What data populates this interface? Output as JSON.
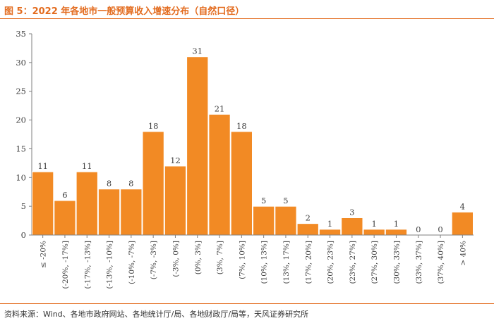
{
  "title": "图 5：2022 年各地市一般预算收入增速分布（自然口径）",
  "source": "资料来源：Wind、各地市政府网站、各地统计厅/局、各地财政厅/局等，天风证券研究所",
  "colors": {
    "bar": "#f28a24",
    "accent": "#e36c1f",
    "axis": "#7f7f7f"
  },
  "chart_data": {
    "type": "bar",
    "categories": [
      "≤ -20%",
      "(-20%, -17%]",
      "(-17%, -13%]",
      "(-13%, -10%]",
      "(-10%, -7%]",
      "(-7%, -3%]",
      "(-3%, 0%]",
      "(0%, 3%]",
      "(3%, 7%]",
      "(7%, 10%]",
      "(10%, 13%]",
      "(13%, 17%]",
      "(17%, 20%]",
      "(20%, 23%]",
      "(23%, 27%]",
      "(27%, 30%]",
      "(30%, 33%]",
      "(33%, 37%]",
      "(37%, 40%]",
      "> 40%"
    ],
    "values": [
      11,
      6,
      11,
      8,
      8,
      18,
      12,
      31,
      21,
      18,
      5,
      5,
      2,
      1,
      3,
      1,
      1,
      0,
      0,
      4
    ],
    "ylim": [
      0,
      35
    ],
    "yticks": [
      0,
      5,
      10,
      15,
      20,
      25,
      30,
      35
    ],
    "grid": false,
    "data_labels": true
  }
}
